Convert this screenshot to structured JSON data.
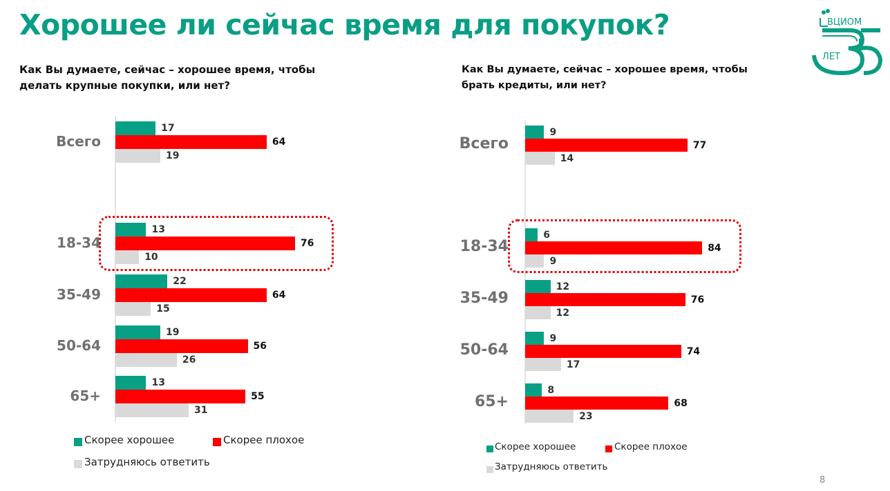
{
  "title": "Хорошее ли сейчас время для покупок?",
  "logo": {
    "text": "ВЦИОМ",
    "number": "35",
    "sub": "ЛЕТ"
  },
  "page_number": "8",
  "colors": {
    "good": "#07a085",
    "bad": "#ff0000",
    "unsure": "#d9d9d9",
    "title": "#0a9e84"
  },
  "chart_data": [
    {
      "type": "bar",
      "orientation": "horizontal",
      "title_lines": [
        "Как Вы думаете, сейчас – хорошее время, чтобы",
        "делать крупные покупки, или нет?"
      ],
      "categories": [
        "Всего",
        "18-34",
        "35-49",
        "50-64",
        "65+"
      ],
      "highlight": "18-34",
      "series": [
        {
          "name": "Скорее хорошее",
          "values": [
            17,
            13,
            22,
            19,
            13
          ]
        },
        {
          "name": "Скорее плохое",
          "values": [
            64,
            76,
            64,
            56,
            55
          ]
        },
        {
          "name": "Затрудняюсь ответить",
          "values": [
            19,
            10,
            15,
            26,
            31
          ]
        }
      ],
      "legend": "bottom"
    },
    {
      "type": "bar",
      "orientation": "horizontal",
      "title_lines": [
        "Как Вы думаете, сейчас – хорошее время, чтобы",
        "брать кредиты, или нет?"
      ],
      "categories": [
        "Всего",
        "18-34",
        "35-49",
        "50-64",
        "65+"
      ],
      "highlight": "18-34",
      "series": [
        {
          "name": "Скорее хорошее",
          "values": [
            9,
            6,
            12,
            9,
            8
          ]
        },
        {
          "name": "Скорее плохое",
          "values": [
            77,
            84,
            76,
            74,
            68
          ]
        },
        {
          "name": "Затрудняюсь ответить",
          "values": [
            14,
            9,
            12,
            17,
            23
          ]
        }
      ],
      "legend": "bottom"
    }
  ]
}
